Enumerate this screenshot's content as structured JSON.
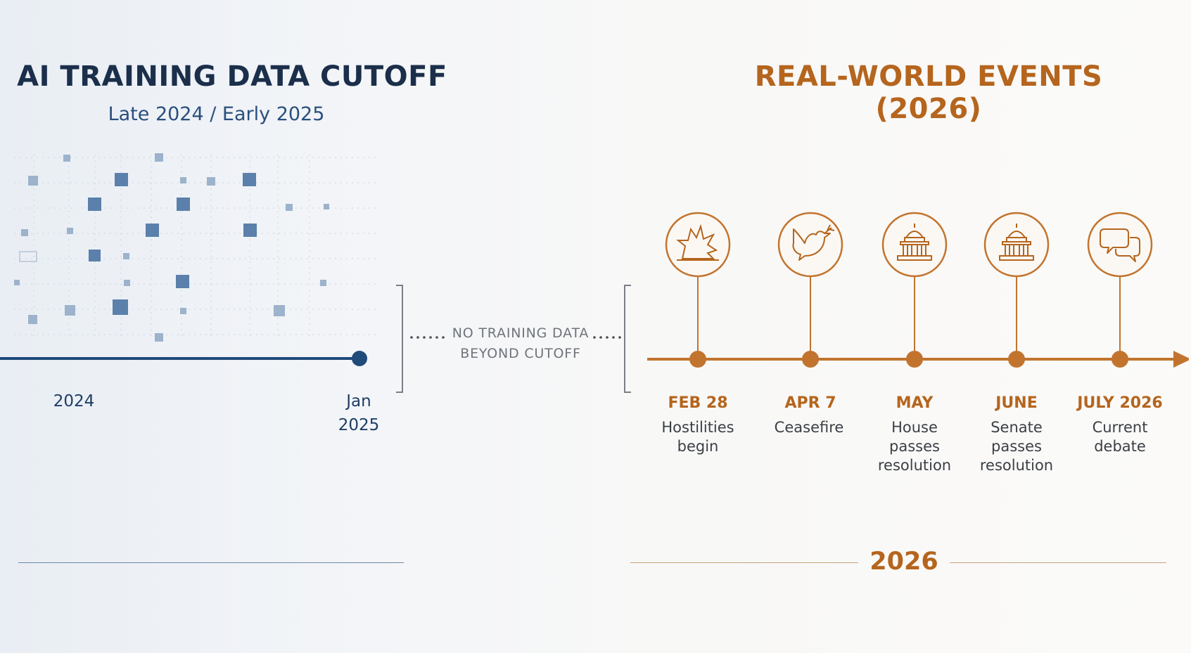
{
  "left_panel": {
    "title": "AI TRAINING DATA CUTOFF",
    "subtitle": "Late 2024 / Early 2025",
    "start_label": "2024",
    "end_label_line1": "Jan",
    "end_label_line2": "2025",
    "accent_color": "#1f4a7a"
  },
  "gap": {
    "line1": "NO TRAINING DATA",
    "line2": "BEYOND CUTOFF"
  },
  "right_panel": {
    "title": "REAL-WORLD EVENTS (2026)",
    "year": "2026",
    "accent_color": "#b5651d",
    "events": [
      {
        "date": "FEB 28",
        "desc_lines": [
          "Hostilities",
          "begin"
        ],
        "icon": "explosion-icon"
      },
      {
        "date": "APR 7",
        "desc_lines": [
          "Ceasefire"
        ],
        "icon": "dove-icon"
      },
      {
        "date": "MAY",
        "desc_lines": [
          "House",
          "passes",
          "resolution"
        ],
        "icon": "capitol-icon"
      },
      {
        "date": "JUNE",
        "desc_lines": [
          "Senate",
          "passes",
          "resolution"
        ],
        "icon": "capitol-icon"
      },
      {
        "date": "JULY 2026",
        "desc_lines": [
          "Current",
          "debate"
        ],
        "icon": "speech-bubbles-icon"
      }
    ]
  }
}
